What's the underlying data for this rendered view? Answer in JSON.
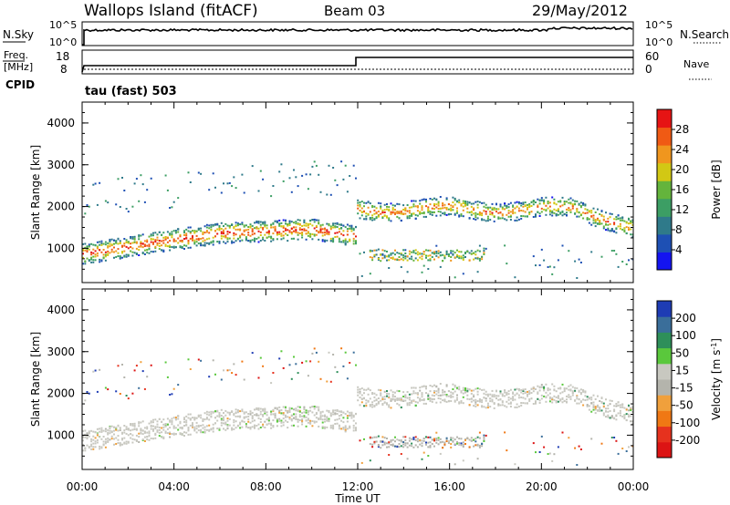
{
  "header": {
    "site": "Wallops Island (fitACF)",
    "beam": "Beam 03",
    "date": "29/May/2012"
  },
  "noise_panel": {
    "left_label": "N.Sky",
    "left_ticks": [
      "10^5",
      "10^0"
    ],
    "right_label": "N.Search",
    "right_ticks": [
      "10^5",
      "10^0"
    ]
  },
  "freq_panel": {
    "left_label_1": "Freq.",
    "left_label_2": "[MHz]",
    "left_ticks": [
      "18",
      "8"
    ],
    "right_label": "Nave",
    "right_ticks": [
      "60",
      "0"
    ],
    "cpid_label": "CPID",
    "program": "tau (fast) 503"
  },
  "time_axis": {
    "label": "Time UT",
    "ticks": [
      "00:00",
      "04:00",
      "08:00",
      "12:00",
      "16:00",
      "20:00",
      "00:00"
    ]
  },
  "colors": {
    "power": [
      "#1414f0",
      "#1e50b4",
      "#2f7a8a",
      "#3c9e64",
      "#64b43c",
      "#d2c814",
      "#f0961e",
      "#f05a14",
      "#e61414"
    ],
    "velocity": [
      "#1e3cb4",
      "#3a6e9a",
      "#2e8f5a",
      "#5ac83c",
      "#c8c8c0",
      "#b4b4ac",
      "#f0a03c",
      "#f07814",
      "#e6321e",
      "#dc1414"
    ]
  },
  "chart_data": [
    {
      "type": "heatmap",
      "title": "Power",
      "xlabel": "Time UT",
      "ylabel": "Slant Range [km]",
      "x_ticks": [
        "00:00",
        "04:00",
        "08:00",
        "12:00",
        "16:00",
        "20:00",
        "00:00"
      ],
      "xlim_hours": [
        0,
        24
      ],
      "y_ticks": [
        1000,
        2000,
        3000,
        4000
      ],
      "ylim": [
        180,
        4500
      ],
      "colorbar": {
        "label": "Power [dB]",
        "ticks": [
          4,
          8,
          12,
          16,
          20,
          24,
          28
        ],
        "range": [
          0,
          30
        ]
      },
      "bands": [
        {
          "name": "main",
          "start_range_km": 900,
          "end_range_km": 1700,
          "time_span_h": [
            0,
            11.9
          ],
          "peak_power_db": 28
        },
        {
          "name": "upper",
          "start_range_km": 1950,
          "end_range_km": 1600,
          "time_span_h": [
            12,
            24
          ],
          "peak_power_db": 24
        },
        {
          "name": "lower",
          "start_range_km": 800,
          "end_range_km": 900,
          "time_span_h": [
            12.5,
            17.5
          ],
          "peak_power_db": 16
        }
      ]
    },
    {
      "type": "heatmap",
      "title": "Velocity",
      "xlabel": "Time UT",
      "ylabel": "Slant Range [km]",
      "x_ticks": [
        "00:00",
        "04:00",
        "08:00",
        "12:00",
        "16:00",
        "20:00",
        "00:00"
      ],
      "xlim_hours": [
        0,
        24
      ],
      "y_ticks": [
        1000,
        2000,
        3000,
        4000
      ],
      "ylim": [
        180,
        4500
      ],
      "colorbar": {
        "label": "Velocity [m s^-1]",
        "ticks": [
          200,
          100,
          50,
          15,
          -15,
          -50,
          -100,
          -200
        ],
        "range": [
          -250,
          250
        ]
      }
    }
  ]
}
